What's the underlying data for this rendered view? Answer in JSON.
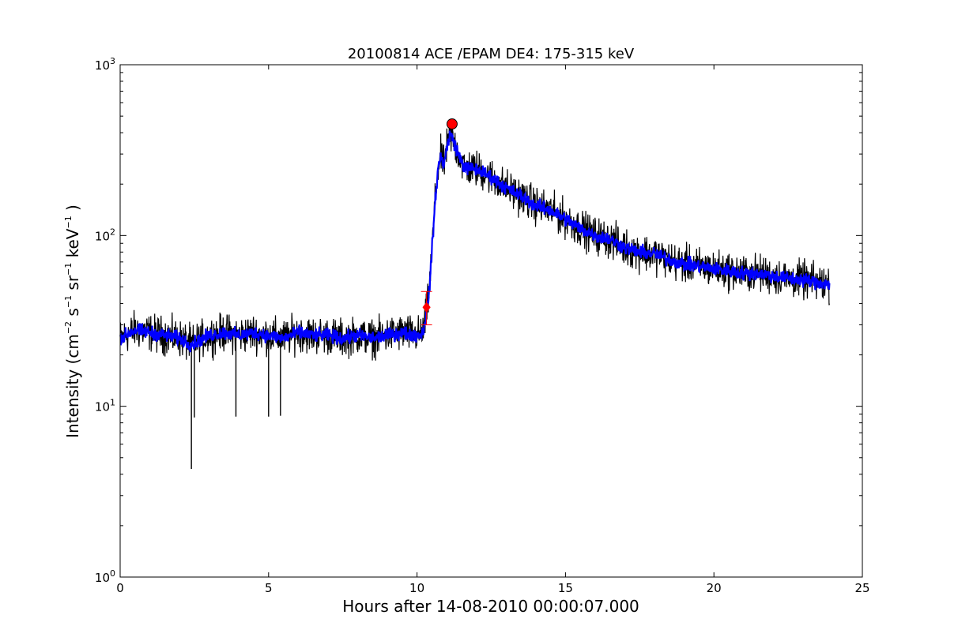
{
  "chart_data": {
    "type": "line",
    "title": "20100814 ACE /EPAM DE4: 175-315 keV",
    "xlabel": "Hours after 14-08-2010 00:00:07.000",
    "ylabel": "Intensity (cm⁻² s⁻¹ sr⁻¹ keV⁻¹)",
    "ylabel_parts": {
      "prefix": "Intensity (cm",
      "exp1": "−2",
      "s": " s",
      "exp2": "−1",
      "sr": " sr",
      "exp3": "−1",
      "kev": " keV",
      "exp4": "−1",
      "suffix": " )"
    },
    "xlim": [
      0,
      25
    ],
    "ylim": [
      1,
      1000
    ],
    "yscale": "log",
    "grid": false,
    "x_ticks": [
      "0",
      "5",
      "10",
      "15",
      "20",
      "25"
    ],
    "x_tick_values": [
      0,
      5,
      10,
      15,
      20,
      25
    ],
    "y_ticks": [
      {
        "base": "10",
        "exp": "0",
        "value": 1
      },
      {
        "base": "10",
        "exp": "1",
        "value": 10
      },
      {
        "base": "10",
        "exp": "2",
        "value": 100
      },
      {
        "base": "10",
        "exp": "3",
        "value": 1000
      }
    ],
    "series": [
      {
        "role": "raw",
        "color": "#000000",
        "points": [
          [
            0.0,
            25
          ],
          [
            0.5,
            28
          ],
          [
            1.0,
            27
          ],
          [
            1.5,
            26
          ],
          [
            2.0,
            25
          ],
          [
            2.4,
            23
          ],
          [
            3.0,
            26
          ],
          [
            3.5,
            27
          ],
          [
            4.0,
            26
          ],
          [
            4.5,
            27
          ],
          [
            5.0,
            26
          ],
          [
            5.5,
            25
          ],
          [
            6.0,
            27
          ],
          [
            6.5,
            26
          ],
          [
            7.0,
            26
          ],
          [
            7.5,
            25
          ],
          [
            8.0,
            26
          ],
          [
            8.5,
            25
          ],
          [
            9.0,
            26
          ],
          [
            9.5,
            27
          ],
          [
            10.0,
            26
          ],
          [
            10.2,
            27
          ],
          [
            10.3,
            34
          ],
          [
            10.4,
            45
          ],
          [
            10.5,
            80
          ],
          [
            10.6,
            150
          ],
          [
            10.7,
            240
          ],
          [
            10.8,
            290
          ],
          [
            10.9,
            260
          ],
          [
            11.0,
            320
          ],
          [
            11.1,
            390
          ],
          [
            11.2,
            370
          ],
          [
            11.3,
            330
          ],
          [
            11.4,
            300
          ],
          [
            11.5,
            270
          ],
          [
            11.6,
            250
          ],
          [
            12.0,
            245
          ],
          [
            12.5,
            220
          ],
          [
            13.0,
            190
          ],
          [
            13.5,
            170
          ],
          [
            14.0,
            150
          ],
          [
            14.5,
            140
          ],
          [
            15.0,
            125
          ],
          [
            15.5,
            110
          ],
          [
            16.0,
            100
          ],
          [
            16.5,
            95
          ],
          [
            17.0,
            85
          ],
          [
            17.5,
            80
          ],
          [
            18.0,
            78
          ],
          [
            18.5,
            72
          ],
          [
            19.0,
            68
          ],
          [
            19.5,
            66
          ],
          [
            20.0,
            64
          ],
          [
            20.5,
            62
          ],
          [
            21.0,
            60
          ],
          [
            21.5,
            60
          ],
          [
            22.0,
            58
          ],
          [
            22.5,
            56
          ],
          [
            23.0,
            55
          ],
          [
            23.5,
            53
          ],
          [
            23.9,
            52
          ]
        ],
        "spikes_low": [
          [
            2.4,
            4.3
          ],
          [
            2.5,
            8.6
          ],
          [
            3.9,
            8.7
          ],
          [
            5.0,
            8.7
          ],
          [
            5.4,
            8.8
          ]
        ]
      },
      {
        "role": "smoothed",
        "color": "#0000ff",
        "points": [
          [
            0.0,
            25
          ],
          [
            0.5,
            28
          ],
          [
            1.0,
            27
          ],
          [
            1.5,
            26
          ],
          [
            2.0,
            25
          ],
          [
            2.4,
            23
          ],
          [
            3.0,
            26
          ],
          [
            3.5,
            27
          ],
          [
            4.0,
            26
          ],
          [
            4.5,
            27
          ],
          [
            5.0,
            26
          ],
          [
            5.5,
            25
          ],
          [
            6.0,
            27
          ],
          [
            6.5,
            26
          ],
          [
            7.0,
            26
          ],
          [
            7.5,
            25
          ],
          [
            8.0,
            26
          ],
          [
            8.5,
            25
          ],
          [
            9.0,
            26
          ],
          [
            9.5,
            27
          ],
          [
            10.0,
            26
          ],
          [
            10.2,
            27
          ],
          [
            10.3,
            34
          ],
          [
            10.4,
            45
          ],
          [
            10.5,
            80
          ],
          [
            10.6,
            150
          ],
          [
            10.7,
            240
          ],
          [
            10.8,
            290
          ],
          [
            10.9,
            260
          ],
          [
            11.0,
            320
          ],
          [
            11.1,
            390
          ],
          [
            11.2,
            370
          ],
          [
            11.3,
            330
          ],
          [
            11.4,
            300
          ],
          [
            11.5,
            270
          ],
          [
            11.6,
            250
          ],
          [
            12.0,
            245
          ],
          [
            12.5,
            220
          ],
          [
            13.0,
            190
          ],
          [
            13.5,
            170
          ],
          [
            14.0,
            150
          ],
          [
            14.5,
            140
          ],
          [
            15.0,
            125
          ],
          [
            15.5,
            110
          ],
          [
            16.0,
            100
          ],
          [
            16.5,
            95
          ],
          [
            17.0,
            85
          ],
          [
            17.5,
            80
          ],
          [
            18.0,
            78
          ],
          [
            18.5,
            72
          ],
          [
            19.0,
            68
          ],
          [
            19.5,
            66
          ],
          [
            20.0,
            64
          ],
          [
            20.5,
            62
          ],
          [
            21.0,
            60
          ],
          [
            21.5,
            60
          ],
          [
            22.0,
            58
          ],
          [
            22.5,
            56
          ],
          [
            23.0,
            55
          ],
          [
            23.5,
            53
          ],
          [
            23.9,
            52
          ]
        ]
      }
    ],
    "markers": [
      {
        "type": "circle",
        "color": "#ff0000",
        "x": 11.18,
        "y": 450
      },
      {
        "type": "diamond",
        "color": "#ff0000",
        "x": 10.32,
        "y": 38
      },
      {
        "type": "errorbar",
        "color": "#ff0000",
        "x": 10.32,
        "y": 38,
        "ylow": 30,
        "yhigh": 47
      }
    ]
  }
}
